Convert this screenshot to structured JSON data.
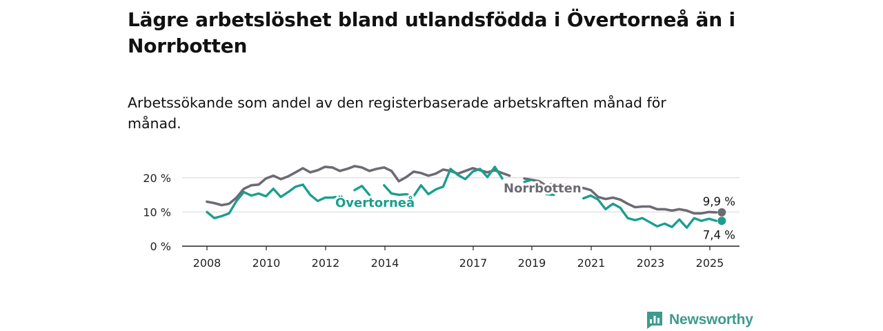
{
  "title": "Lägre arbetslöshet bland utlandsfödda i Övertorneå än i Norrbotten",
  "subtitle": "Arbetssökande som andel av den registerbaserade arbetskraften månad för månad.",
  "brand": {
    "name": "Newsworthy",
    "color": "#3d9a8f"
  },
  "chart_data": {
    "type": "line",
    "title": "Lägre arbetslöshet bland utlandsfödda i Övertorneå än i Norrbotten",
    "subtitle": "Arbetssökande som andel av den registerbaserade arbetskraften månad för månad.",
    "xlabel": "",
    "ylabel": "",
    "x_ticks": [
      "2008",
      "2010",
      "2012",
      "2014",
      "2017",
      "2019",
      "2021",
      "2023",
      "2025"
    ],
    "y_ticks": [
      "0 %",
      "10 %",
      "20 %"
    ],
    "ylim": [
      0,
      25
    ],
    "grid": "horizontal",
    "colors": {
      "Norrbotten": "#6e6a73",
      "Övertorneå": "#1a9e8e"
    },
    "series": [
      {
        "name": "Norrbotten",
        "end_label": "9,9 %",
        "points": [
          [
            "2008-01",
            13.0
          ],
          [
            "2008-04",
            12.6
          ],
          [
            "2008-07",
            12.0
          ],
          [
            "2008-10",
            12.4
          ],
          [
            "2009-01",
            14.2
          ],
          [
            "2009-04",
            16.8
          ],
          [
            "2009-07",
            17.8
          ],
          [
            "2009-10",
            18.0
          ],
          [
            "2010-01",
            19.8
          ],
          [
            "2010-04",
            20.6
          ],
          [
            "2010-07",
            19.6
          ],
          [
            "2010-10",
            20.4
          ],
          [
            "2011-01",
            21.6
          ],
          [
            "2011-04",
            22.8
          ],
          [
            "2011-07",
            21.6
          ],
          [
            "2011-10",
            22.2
          ],
          [
            "2012-01",
            23.2
          ],
          [
            "2012-04",
            23.0
          ],
          [
            "2012-07",
            22.0
          ],
          [
            "2012-10",
            22.6
          ],
          [
            "2013-01",
            23.4
          ],
          [
            "2013-04",
            23.0
          ],
          [
            "2013-07",
            22.0
          ],
          [
            "2013-10",
            22.6
          ],
          [
            "2014-01",
            23.0
          ],
          [
            "2014-04",
            22.0
          ],
          [
            "2014-07",
            19.0
          ],
          [
            "2014-10",
            20.2
          ],
          [
            "2015-01",
            21.8
          ],
          [
            "2015-04",
            21.4
          ],
          [
            "2015-07",
            20.6
          ],
          [
            "2015-10",
            21.2
          ],
          [
            "2016-01",
            22.4
          ],
          [
            "2016-04",
            22.0
          ],
          [
            "2016-07",
            21.2
          ],
          [
            "2016-10",
            22.0
          ],
          [
            "2017-01",
            22.8
          ],
          [
            "2017-04",
            22.2
          ],
          [
            "2017-07",
            21.6
          ],
          [
            "2017-10",
            22.2
          ],
          [
            "2018-01",
            21.4
          ],
          [
            "2018-04",
            20.6
          ],
          [
            "2018-06",
            null
          ],
          [
            "2018-10",
            19.8
          ],
          [
            "2019-01",
            19.4
          ],
          [
            "2019-04",
            19.0
          ],
          [
            "2019-07",
            17.6
          ],
          [
            "2019-10",
            18.4
          ],
          [
            "2020-01",
            18.0
          ],
          [
            "2020-04",
            17.8
          ],
          [
            "2020-07",
            17.2
          ],
          [
            "2020-10",
            17.0
          ],
          [
            "2021-01",
            16.4
          ],
          [
            "2021-04",
            14.4
          ],
          [
            "2021-07",
            13.8
          ],
          [
            "2021-10",
            14.2
          ],
          [
            "2022-01",
            13.6
          ],
          [
            "2022-04",
            12.4
          ],
          [
            "2022-07",
            11.4
          ],
          [
            "2022-10",
            11.6
          ],
          [
            "2023-01",
            11.6
          ],
          [
            "2023-04",
            10.8
          ],
          [
            "2023-07",
            10.8
          ],
          [
            "2023-10",
            10.4
          ],
          [
            "2024-01",
            10.8
          ],
          [
            "2024-04",
            10.4
          ],
          [
            "2024-07",
            9.6
          ],
          [
            "2024-10",
            9.6
          ],
          [
            "2025-01",
            10.0
          ],
          [
            "2025-04",
            9.9
          ]
        ]
      },
      {
        "name": "Övertorneå",
        "end_label": "7,4 %",
        "points": [
          [
            "2008-01",
            10.0
          ],
          [
            "2008-04",
            8.2
          ],
          [
            "2008-07",
            8.8
          ],
          [
            "2008-10",
            9.6
          ],
          [
            "2009-01",
            13.2
          ],
          [
            "2009-04",
            15.8
          ],
          [
            "2009-07",
            14.8
          ],
          [
            "2009-10",
            15.4
          ],
          [
            "2010-01",
            14.6
          ],
          [
            "2010-04",
            16.8
          ],
          [
            "2010-07",
            14.4
          ],
          [
            "2010-10",
            15.8
          ],
          [
            "2011-01",
            17.4
          ],
          [
            "2011-04",
            18.0
          ],
          [
            "2011-07",
            15.0
          ],
          [
            "2011-10",
            13.2
          ],
          [
            "2012-01",
            14.2
          ],
          [
            "2012-04",
            14.2
          ],
          [
            "2012-07",
            14.6
          ],
          [
            "2012-10",
            null
          ],
          [
            "2013-01",
            16.4
          ],
          [
            "2013-04",
            17.6
          ],
          [
            "2013-07",
            15.0
          ],
          [
            "2013-10",
            null
          ],
          [
            "2014-01",
            17.8
          ],
          [
            "2014-04",
            15.4
          ],
          [
            "2014-07",
            15.0
          ],
          [
            "2014-10",
            15.2
          ],
          [
            "2015-01",
            14.6
          ],
          [
            "2015-04",
            17.8
          ],
          [
            "2015-07",
            15.2
          ],
          [
            "2015-10",
            16.6
          ],
          [
            "2016-01",
            17.4
          ],
          [
            "2016-04",
            22.6
          ],
          [
            "2016-07",
            20.8
          ],
          [
            "2016-10",
            19.6
          ],
          [
            "2017-01",
            21.8
          ],
          [
            "2017-04",
            22.6
          ],
          [
            "2017-07",
            20.2
          ],
          [
            "2017-10",
            23.2
          ],
          [
            "2018-01",
            19.8
          ],
          [
            "2018-04",
            null
          ],
          [
            "2018-10",
            18.8
          ],
          [
            "2019-01",
            19.4
          ],
          [
            "2019-04",
            null
          ],
          [
            "2019-07",
            15.2
          ],
          [
            "2019-10",
            15.0
          ],
          [
            "2020-01",
            null
          ],
          [
            "2020-10",
            14.0
          ],
          [
            "2021-01",
            14.8
          ],
          [
            "2021-04",
            13.6
          ],
          [
            "2021-07",
            10.8
          ],
          [
            "2021-10",
            12.4
          ],
          [
            "2022-01",
            11.2
          ],
          [
            "2022-04",
            8.2
          ],
          [
            "2022-07",
            7.6
          ],
          [
            "2022-10",
            8.2
          ],
          [
            "2023-01",
            7.0
          ],
          [
            "2023-04",
            5.8
          ],
          [
            "2023-07",
            6.6
          ],
          [
            "2023-10",
            5.6
          ],
          [
            "2024-01",
            7.8
          ],
          [
            "2024-04",
            5.4
          ],
          [
            "2024-07",
            8.2
          ],
          [
            "2024-10",
            7.4
          ],
          [
            "2025-01",
            8.0
          ],
          [
            "2025-04",
            7.4
          ]
        ]
      }
    ]
  }
}
